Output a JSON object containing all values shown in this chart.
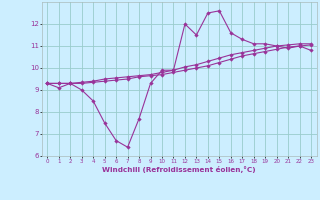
{
  "x": [
    0,
    1,
    2,
    3,
    4,
    5,
    6,
    7,
    8,
    9,
    10,
    11,
    12,
    13,
    14,
    15,
    16,
    17,
    18,
    19,
    20,
    21,
    22,
    23
  ],
  "line1": [
    9.3,
    9.1,
    9.3,
    9.0,
    8.5,
    7.5,
    6.7,
    6.4,
    7.7,
    9.3,
    9.9,
    9.9,
    12.0,
    11.5,
    12.5,
    12.6,
    11.6,
    11.3,
    11.1,
    11.1,
    11.0,
    10.9,
    11.0,
    10.8
  ],
  "line2": [
    9.3,
    9.3,
    9.3,
    9.35,
    9.4,
    9.5,
    9.55,
    9.6,
    9.65,
    9.7,
    9.8,
    9.9,
    10.05,
    10.15,
    10.3,
    10.45,
    10.6,
    10.7,
    10.8,
    10.9,
    11.0,
    11.05,
    11.1,
    11.1
  ],
  "line3": [
    9.3,
    9.3,
    9.3,
    9.3,
    9.35,
    9.4,
    9.45,
    9.5,
    9.6,
    9.65,
    9.7,
    9.8,
    9.9,
    10.0,
    10.1,
    10.25,
    10.4,
    10.55,
    10.65,
    10.75,
    10.85,
    10.95,
    11.0,
    11.05
  ],
  "bg_color": "#cceeff",
  "line_color": "#993399",
  "grid_color": "#99cccc",
  "xlabel": "Windchill (Refroidissement éolien,°C)",
  "xlabel_color": "#993399",
  "tick_color": "#993399",
  "ylim": [
    6,
    13
  ],
  "xlim": [
    -0.5,
    23.5
  ],
  "yticks": [
    6,
    7,
    8,
    9,
    10,
    11,
    12
  ],
  "xticks": [
    0,
    1,
    2,
    3,
    4,
    5,
    6,
    7,
    8,
    9,
    10,
    11,
    12,
    13,
    14,
    15,
    16,
    17,
    18,
    19,
    20,
    21,
    22,
    23
  ]
}
